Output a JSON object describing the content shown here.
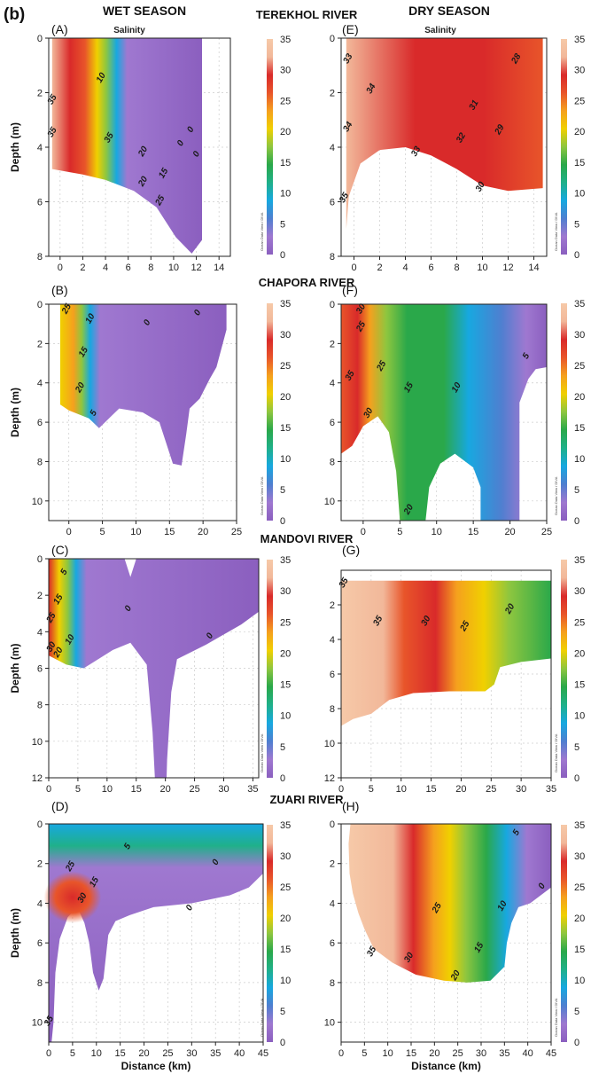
{
  "figure": {
    "label": "(b)",
    "wet_header": "WET SEASON",
    "dry_header": "DRY SEASON",
    "ylabel": "Depth (m)",
    "xlabel": "Distance (km)",
    "variable": "Salinity",
    "watermark": "Ocean Data View / DIVA"
  },
  "colors": {
    "scale": [
      "#8b5fbf",
      "#9f78d0",
      "#4f7fd0",
      "#17a8e0",
      "#1fb08a",
      "#2aa84a",
      "#8ec63f",
      "#f0d000",
      "#f5a01e",
      "#e8552a",
      "#d92a2a",
      "#f2b89a",
      "#f6c9a8"
    ]
  },
  "chart_data": [
    {
      "type": "heatmap",
      "panel": "(A)",
      "river": "TEREKHOL RIVER",
      "season": "wet",
      "variable": "Salinity",
      "xlim": [
        -1,
        15
      ],
      "ylim": [
        8,
        0
      ],
      "xticks": [
        "0",
        "2",
        "4",
        "6",
        "8",
        "10",
        "12",
        "14"
      ],
      "yticks": [
        "0",
        "2",
        "4",
        "6",
        "8"
      ],
      "colorbar_ticks": [
        "35",
        "30",
        "25",
        "20",
        "15",
        "10",
        "5",
        "0"
      ],
      "contour_labels": [
        {
          "text": "35",
          "x": -0.5,
          "y": 2.3
        },
        {
          "text": "10",
          "x": 3.8,
          "y": 1.5
        },
        {
          "text": "35",
          "x": -0.5,
          "y": 3.5
        },
        {
          "text": "35",
          "x": 4.5,
          "y": 3.7
        },
        {
          "text": "20",
          "x": 7.5,
          "y": 4.2
        },
        {
          "text": "0",
          "x": 11.7,
          "y": 3.4
        },
        {
          "text": "0",
          "x": 10.8,
          "y": 3.9
        },
        {
          "text": "0",
          "x": 12.2,
          "y": 4.3
        },
        {
          "text": "15",
          "x": 9.3,
          "y": 5.0
        },
        {
          "text": "20",
          "x": 7.5,
          "y": 5.3
        },
        {
          "text": "25",
          "x": 9.0,
          "y": 6.0
        }
      ]
    },
    {
      "type": "heatmap",
      "panel": "(E)",
      "river": "TEREKHOL RIVER",
      "season": "dry",
      "variable": "Salinity",
      "xlim": [
        -1,
        15
      ],
      "ylim": [
        8,
        0
      ],
      "xticks": [
        "0",
        "2",
        "4",
        "6",
        "8",
        "10",
        "12",
        "14"
      ],
      "yticks": [
        "0",
        "2",
        "4",
        "6",
        "8"
      ],
      "colorbar_ticks": [
        "35",
        "30",
        "25",
        "20",
        "15",
        "10",
        "5",
        "0"
      ],
      "contour_labels": [
        {
          "text": "33",
          "x": -0.3,
          "y": 0.8
        },
        {
          "text": "34",
          "x": 1.5,
          "y": 1.9
        },
        {
          "text": "28",
          "x": 12.8,
          "y": 0.8
        },
        {
          "text": "31",
          "x": 9.5,
          "y": 2.5
        },
        {
          "text": "34",
          "x": -0.3,
          "y": 3.3
        },
        {
          "text": "32",
          "x": 8.5,
          "y": 3.7
        },
        {
          "text": "29",
          "x": 11.5,
          "y": 3.4
        },
        {
          "text": "33",
          "x": 5.0,
          "y": 4.2
        },
        {
          "text": "30",
          "x": 10.0,
          "y": 5.5
        },
        {
          "text": "35",
          "x": -0.6,
          "y": 5.9
        }
      ]
    },
    {
      "type": "heatmap",
      "panel": "(B)",
      "river": "CHAPORA RIVER",
      "season": "wet",
      "variable": "Salinity",
      "xlim": [
        -3,
        25
      ],
      "ylim": [
        11,
        0
      ],
      "xticks": [
        "0",
        "5",
        "10",
        "15",
        "20",
        "25"
      ],
      "yticks": [
        "0",
        "2",
        "4",
        "6",
        "8",
        "10"
      ],
      "colorbar_ticks": [
        "35",
        "30",
        "25",
        "20",
        "15",
        "10",
        "5",
        "0"
      ],
      "contour_labels": [
        {
          "text": "25",
          "x": 0,
          "y": 0.3
        },
        {
          "text": "10",
          "x": 3.5,
          "y": 0.8
        },
        {
          "text": "15",
          "x": 2.5,
          "y": 2.5
        },
        {
          "text": "0",
          "x": 12.0,
          "y": 1.0
        },
        {
          "text": "0",
          "x": 19.5,
          "y": 0.5
        },
        {
          "text": "20",
          "x": 2.0,
          "y": 4.3
        },
        {
          "text": "5",
          "x": 4.0,
          "y": 5.6
        }
      ]
    },
    {
      "type": "heatmap",
      "panel": "(F)",
      "river": "CHAPORA RIVER",
      "season": "dry",
      "variable": "Salinity",
      "xlim": [
        -3,
        25
      ],
      "ylim": [
        11,
        0
      ],
      "xticks": [
        "0",
        "5",
        "10",
        "15",
        "20",
        "25"
      ],
      "yticks": [
        "0",
        "2",
        "4",
        "6",
        "8",
        "10"
      ],
      "colorbar_ticks": [
        "35",
        "30",
        "25",
        "20",
        "15",
        "10",
        "5",
        "0"
      ],
      "contour_labels": [
        {
          "text": "30",
          "x": 0,
          "y": 0.3
        },
        {
          "text": "25",
          "x": 0,
          "y": 1.2
        },
        {
          "text": "35",
          "x": -1.5,
          "y": 3.7
        },
        {
          "text": "25",
          "x": 2.8,
          "y": 3.2
        },
        {
          "text": "15",
          "x": 6.5,
          "y": 4.3
        },
        {
          "text": "10",
          "x": 13.0,
          "y": 4.3
        },
        {
          "text": "5",
          "x": 22.5,
          "y": 2.7
        },
        {
          "text": "30",
          "x": 1.0,
          "y": 5.6
        },
        {
          "text": "20",
          "x": 6.5,
          "y": 10.5
        }
      ]
    },
    {
      "type": "heatmap",
      "panel": "(C)",
      "river": "MANDOVI RIVER",
      "season": "wet",
      "variable": "Salinity",
      "xlim": [
        0,
        36
      ],
      "ylim": [
        12,
        0
      ],
      "xticks": [
        "0",
        "5",
        "10",
        "15",
        "20",
        "25",
        "30",
        "35"
      ],
      "yticks": [
        "0",
        "2",
        "4",
        "6",
        "8",
        "10",
        "12"
      ],
      "colorbar_ticks": [
        "35",
        "30",
        "25",
        "20",
        "15",
        "10",
        "5",
        "0"
      ],
      "contour_labels": [
        {
          "text": "5",
          "x": 3.0,
          "y": 0.8
        },
        {
          "text": "15",
          "x": 2.0,
          "y": 2.3
        },
        {
          "text": "25",
          "x": 0.8,
          "y": 3.3
        },
        {
          "text": "0",
          "x": 14.0,
          "y": 2.8
        },
        {
          "text": "10",
          "x": 4.0,
          "y": 4.5
        },
        {
          "text": "30",
          "x": 0.8,
          "y": 4.9
        },
        {
          "text": "20",
          "x": 2.0,
          "y": 5.2
        },
        {
          "text": "0",
          "x": 28.0,
          "y": 4.3
        }
      ]
    },
    {
      "type": "heatmap",
      "panel": "(G)",
      "river": "MANDOVI RIVER",
      "season": "dry",
      "variable": "Salinity",
      "xlim": [
        0,
        35
      ],
      "ylim": [
        12,
        0
      ],
      "xticks": [
        "0",
        "5",
        "10",
        "15",
        "20",
        "25",
        "30",
        "35"
      ],
      "yticks": [
        "2",
        "4",
        "6",
        "8",
        "10",
        "12"
      ],
      "colorbar_ticks": [
        "35",
        "30",
        "25",
        "20",
        "15",
        "10",
        "5",
        "0"
      ],
      "contour_labels": [
        {
          "text": "35",
          "x": 0.8,
          "y": 0.8
        },
        {
          "text": "35",
          "x": 6.5,
          "y": 3.0
        },
        {
          "text": "30",
          "x": 14.5,
          "y": 3.0
        },
        {
          "text": "25",
          "x": 21.0,
          "y": 3.3
        },
        {
          "text": "20",
          "x": 28.5,
          "y": 2.3
        }
      ]
    },
    {
      "type": "heatmap",
      "panel": "(D)",
      "river": "ZUARI RIVER",
      "season": "wet",
      "variable": "Salinity",
      "xlim": [
        0,
        45
      ],
      "ylim": [
        11,
        0
      ],
      "xticks": [
        "0",
        "5",
        "10",
        "15",
        "20",
        "25",
        "30",
        "35",
        "40",
        "45"
      ],
      "yticks": [
        "0",
        "2",
        "4",
        "6",
        "8",
        "10"
      ],
      "colorbar_ticks": [
        "35",
        "30",
        "25",
        "20",
        "15",
        "10",
        "5",
        "0"
      ],
      "contour_labels": [
        {
          "text": "25",
          "x": 5.0,
          "y": 2.2
        },
        {
          "text": "5",
          "x": 17.0,
          "y": 1.2
        },
        {
          "text": "0",
          "x": 35.5,
          "y": 2.0
        },
        {
          "text": "15",
          "x": 10.0,
          "y": 3.0
        },
        {
          "text": "30",
          "x": 7.5,
          "y": 3.8
        },
        {
          "text": "0",
          "x": 30.0,
          "y": 4.3
        },
        {
          "text": "35",
          "x": 0.5,
          "y": 10.0
        }
      ]
    },
    {
      "type": "heatmap",
      "panel": "(H)",
      "river": "ZUARI RIVER",
      "season": "dry",
      "variable": "Salinity",
      "xlim": [
        0,
        45
      ],
      "ylim": [
        11,
        0
      ],
      "xticks": [
        "0",
        "5",
        "10",
        "15",
        "20",
        "25",
        "30",
        "35",
        "40",
        "45"
      ],
      "yticks": [
        "0",
        "2",
        "4",
        "6",
        "8",
        "10"
      ],
      "colorbar_ticks": [
        "35",
        "30",
        "25",
        "20",
        "15",
        "10",
        "5",
        "0"
      ],
      "contour_labels": [
        {
          "text": "5",
          "x": 38.0,
          "y": 0.5
        },
        {
          "text": "0",
          "x": 43.5,
          "y": 3.2
        },
        {
          "text": "25",
          "x": 21.0,
          "y": 4.3
        },
        {
          "text": "10",
          "x": 35.0,
          "y": 4.2
        },
        {
          "text": "35",
          "x": 7.0,
          "y": 6.5
        },
        {
          "text": "30",
          "x": 15.0,
          "y": 6.8
        },
        {
          "text": "15",
          "x": 30.0,
          "y": 6.3
        },
        {
          "text": "20",
          "x": 25.0,
          "y": 7.7
        }
      ]
    }
  ]
}
